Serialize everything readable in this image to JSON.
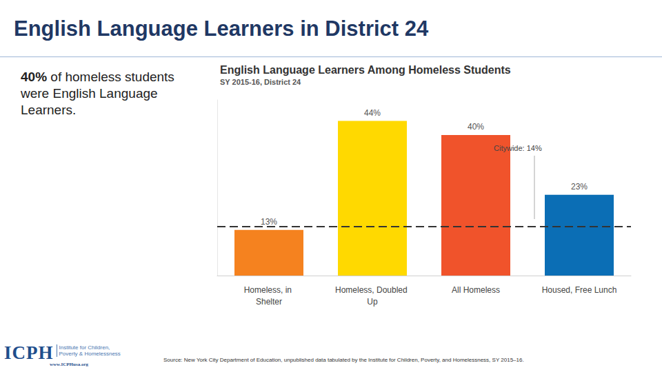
{
  "page": {
    "title": "English Language Learners in District 24",
    "summary": [
      "40%",
      "of homeless students were English Language Learners."
    ],
    "source": "Source: New York City Department of Education, unpublished data tabulated by the Institute for Children, Poverty, and Homelessness, SY 2015–16.",
    "logo": {
      "mark": "ICPH",
      "lines": [
        "Institute for Children,",
        "Poverty & Homelessness"
      ],
      "url": "www.ICPHusa.org"
    }
  },
  "chart_data": {
    "type": "bar",
    "title": "English Language Learners Among Homeless Students",
    "subtitle": "SY 2015-16, District 24",
    "categories": [
      "Homeless, in Shelter",
      "Homeless, Doubled Up",
      "All Homeless",
      "Housed, Free Lunch"
    ],
    "values": [
      13,
      44,
      40,
      23
    ],
    "value_labels": [
      "13%",
      "44%",
      "40%",
      "23%"
    ],
    "colors": [
      "#f5821f",
      "#ffd900",
      "#f0532b",
      "#0b6eb5"
    ],
    "ylim": [
      0,
      50
    ],
    "grid": false,
    "data_labels": true,
    "tick_labels": "x",
    "citywide": {
      "value": 14,
      "label": "Citywide: 14%"
    }
  }
}
